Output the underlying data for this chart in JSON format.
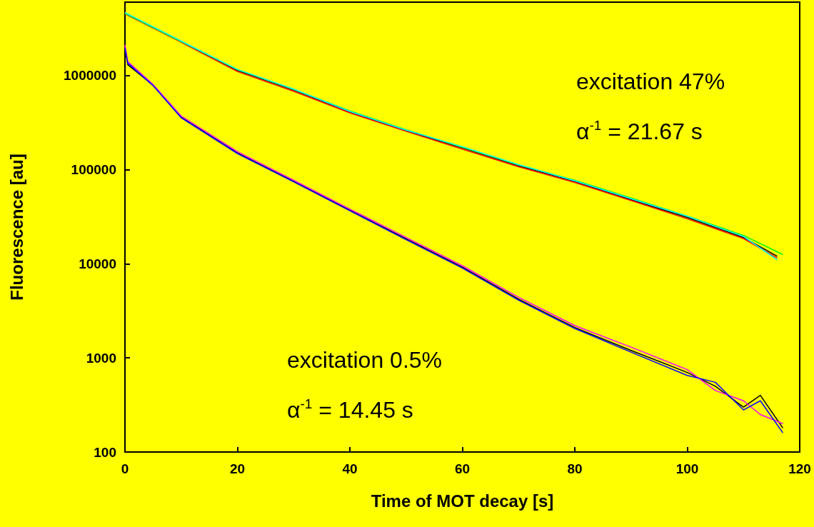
{
  "chart_data": {
    "type": "line",
    "xlabel": "Time of MOT decay [s]",
    "ylabel": "Fluorescence [au]",
    "log": "y",
    "grid": false,
    "marker": "none",
    "line_style": "solid",
    "xlim": [
      0,
      120
    ],
    "xticks": [
      0,
      20,
      40,
      60,
      80,
      100,
      120
    ],
    "ylim": [
      100,
      6000000
    ],
    "yticks": [
      100,
      1000,
      10000,
      100000,
      1000000
    ],
    "annotations": [
      "excitation 47%",
      "α$^{-1}$ = 21.67 s",
      "excitation 0.5%",
      "α$^{-1}$ = 14.45 s"
    ],
    "series": [
      {
        "color": "#000000",
        "x": [
          0,
          10,
          20,
          30,
          40,
          50,
          60,
          70,
          80,
          90,
          100,
          110,
          116
        ],
        "values": [
          4600000,
          2300000,
          1130000,
          700000,
          410000,
          260000,
          170000,
          110000,
          75000,
          48000,
          31000,
          19000,
          12000
        ]
      },
      {
        "color": "#ff0000",
        "x": [
          0,
          10,
          20,
          30,
          40,
          50,
          60,
          70,
          80,
          90,
          100,
          110,
          116
        ],
        "values": [
          4500000,
          2250000,
          1100000,
          680000,
          400000,
          255000,
          165000,
          107000,
          73000,
          47000,
          30000,
          18500,
          11500
        ]
      },
      {
        "color": "#00ff00",
        "x": [
          0,
          10,
          20,
          30,
          40,
          50,
          60,
          70,
          80,
          90,
          100,
          110,
          117
        ],
        "values": [
          4550000,
          2280000,
          1150000,
          710000,
          420000,
          265000,
          172000,
          112000,
          77000,
          50000,
          32000,
          20000,
          12500
        ]
      },
      {
        "color": "#00ffff",
        "x": [
          0,
          10,
          20,
          30,
          40,
          50,
          60,
          70,
          80,
          90,
          100,
          110,
          116
        ],
        "values": [
          4650000,
          2320000,
          1160000,
          715000,
          415000,
          262000,
          175000,
          113000,
          76000,
          49000,
          32000,
          19500,
          11000
        ]
      },
      {
        "color": "#000000",
        "x": [
          0,
          0.5,
          5,
          10,
          20,
          30,
          40,
          50,
          60,
          70,
          80,
          90,
          100,
          105,
          110,
          113,
          117
        ],
        "values": [
          2000000,
          1300000,
          790000,
          360000,
          150000,
          75000,
          37000,
          18400,
          9200,
          4200,
          2100,
          1200,
          700,
          500,
          300,
          400,
          180
        ]
      },
      {
        "color": "#ff00ff",
        "x": [
          0,
          0.5,
          5,
          10,
          20,
          30,
          40,
          50,
          60,
          70,
          80,
          90,
          100,
          105,
          110,
          113,
          117
        ],
        "values": [
          2100000,
          1400000,
          800000,
          370000,
          155000,
          77000,
          38000,
          19000,
          9500,
          4400,
          2200,
          1300,
          750,
          450,
          350,
          250,
          200
        ]
      },
      {
        "color": "#0000ff",
        "x": [
          0,
          0.5,
          5,
          10,
          20,
          30,
          40,
          50,
          60,
          70,
          80,
          90,
          100,
          105,
          110,
          113,
          117
        ],
        "values": [
          1950000,
          1350000,
          780000,
          355000,
          148000,
          74000,
          36500,
          18000,
          9000,
          4100,
          2050,
          1150,
          650,
          550,
          280,
          350,
          160
        ]
      }
    ]
  }
}
